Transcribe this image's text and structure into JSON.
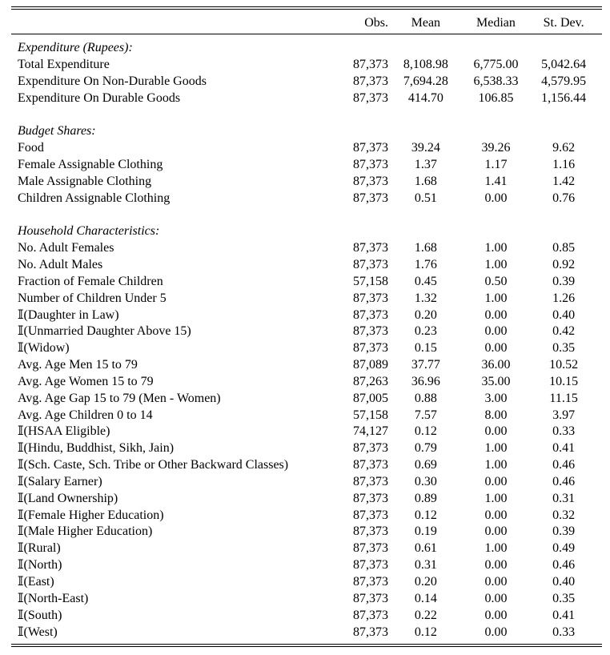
{
  "columns": {
    "obs": "Obs.",
    "mean": "Mean",
    "median": "Median",
    "sd": "St. Dev."
  },
  "sections": [
    {
      "title": "Expenditure (Rupees):",
      "rows": [
        {
          "label": "Total Expenditure",
          "obs": "87,373",
          "mean": "8,108.98",
          "median": "6,775.00",
          "sd": "5,042.64"
        },
        {
          "label": "Expenditure On Non-Durable Goods",
          "obs": "87,373",
          "mean": "7,694.28",
          "median": "6,538.33",
          "sd": "4,579.95"
        },
        {
          "label": "Expenditure On Durable Goods",
          "obs": "87,373",
          "mean": "414.70",
          "median": "106.85",
          "sd": "1,156.44"
        }
      ]
    },
    {
      "title": "Budget Shares:",
      "rows": [
        {
          "label": "Food",
          "obs": "87,373",
          "mean": "39.24",
          "median": "39.26",
          "sd": "9.62"
        },
        {
          "label": "Female Assignable Clothing",
          "obs": "87,373",
          "mean": "1.37",
          "median": "1.17",
          "sd": "1.16"
        },
        {
          "label": "Male Assignable Clothing",
          "obs": "87,373",
          "mean": "1.68",
          "median": "1.41",
          "sd": "1.42"
        },
        {
          "label": "Children Assignable Clothing",
          "obs": "87,373",
          "mean": "0.51",
          "median": "0.00",
          "sd": "0.76"
        }
      ]
    },
    {
      "title": "Household Characteristics:",
      "rows": [
        {
          "label": "No. Adult Females",
          "obs": "87,373",
          "mean": "1.68",
          "median": "1.00",
          "sd": "0.85"
        },
        {
          "label": "No. Adult Males",
          "obs": "87,373",
          "mean": "1.76",
          "median": "1.00",
          "sd": "0.92"
        },
        {
          "label": "Fraction of Female Children",
          "obs": "57,158",
          "mean": "0.45",
          "median": "0.50",
          "sd": "0.39"
        },
        {
          "label": "Number of Children Under 5",
          "obs": "87,373",
          "mean": "1.32",
          "median": "1.00",
          "sd": "1.26"
        },
        {
          "label": "𝕀(Daughter in Law)",
          "obs": "87,373",
          "mean": "0.20",
          "median": "0.00",
          "sd": "0.40"
        },
        {
          "label": "𝕀(Unmarried Daughter Above 15)",
          "obs": "87,373",
          "mean": "0.23",
          "median": "0.00",
          "sd": "0.42"
        },
        {
          "label": "𝕀(Widow)",
          "obs": "87,373",
          "mean": "0.15",
          "median": "0.00",
          "sd": "0.35"
        },
        {
          "label": "Avg. Age Men 15 to 79",
          "obs": "87,089",
          "mean": "37.77",
          "median": "36.00",
          "sd": "10.52"
        },
        {
          "label": "Avg. Age Women 15 to 79",
          "obs": "87,263",
          "mean": "36.96",
          "median": "35.00",
          "sd": "10.15"
        },
        {
          "label": "Avg. Age Gap 15 to 79 (Men - Women)",
          "obs": "87,005",
          "mean": "0.88",
          "median": "3.00",
          "sd": "11.15"
        },
        {
          "label": "Avg. Age Children 0 to 14",
          "obs": "57,158",
          "mean": "7.57",
          "median": "8.00",
          "sd": "3.97"
        },
        {
          "label": "𝕀(HSAA Eligible)",
          "obs": "74,127",
          "mean": "0.12",
          "median": "0.00",
          "sd": "0.33"
        },
        {
          "label": "𝕀(Hindu, Buddhist, Sikh, Jain)",
          "obs": "87,373",
          "mean": "0.79",
          "median": "1.00",
          "sd": "0.41"
        },
        {
          "label": "𝕀(Sch. Caste, Sch. Tribe or Other Backward Classes)",
          "obs": "87,373",
          "mean": "0.69",
          "median": "1.00",
          "sd": "0.46"
        },
        {
          "label": "𝕀(Salary Earner)",
          "obs": "87,373",
          "mean": "0.30",
          "median": "0.00",
          "sd": "0.46"
        },
        {
          "label": "𝕀(Land Ownership)",
          "obs": "87,373",
          "mean": "0.89",
          "median": "1.00",
          "sd": "0.31"
        },
        {
          "label": "𝕀(Female Higher Education)",
          "obs": "87,373",
          "mean": "0.12",
          "median": "0.00",
          "sd": "0.32"
        },
        {
          "label": "𝕀(Male Higher Education)",
          "obs": "87,373",
          "mean": "0.19",
          "median": "0.00",
          "sd": "0.39"
        },
        {
          "label": "𝕀(Rural)",
          "obs": "87,373",
          "mean": "0.61",
          "median": "1.00",
          "sd": "0.49"
        },
        {
          "label": "𝕀(North)",
          "obs": "87,373",
          "mean": "0.31",
          "median": "0.00",
          "sd": "0.46"
        },
        {
          "label": "𝕀(East)",
          "obs": "87,373",
          "mean": "0.20",
          "median": "0.00",
          "sd": "0.40"
        },
        {
          "label": "𝕀(North-East)",
          "obs": "87,373",
          "mean": "0.14",
          "median": "0.00",
          "sd": "0.35"
        },
        {
          "label": "𝕀(South)",
          "obs": "87,373",
          "mean": "0.22",
          "median": "0.00",
          "sd": "0.41"
        },
        {
          "label": "𝕀(West)",
          "obs": "87,373",
          "mean": "0.12",
          "median": "0.00",
          "sd": "0.33"
        }
      ]
    }
  ]
}
